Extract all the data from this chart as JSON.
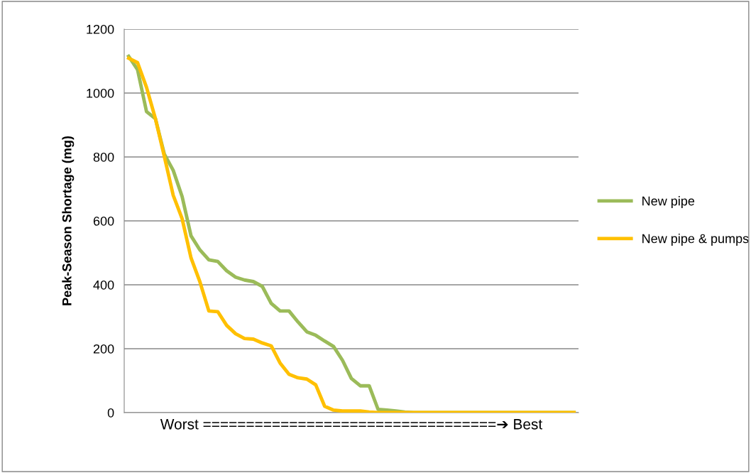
{
  "chart_data": {
    "type": "line",
    "ylabel": "Peak-Season Shortage (mg)",
    "xlabel": "Worst ==================================➔ Best",
    "categories": [
      null,
      null,
      null,
      null,
      null,
      null,
      null,
      null,
      null,
      null,
      null,
      null,
      null,
      null,
      null,
      null,
      null,
      null,
      null,
      null,
      null,
      null,
      null,
      null,
      null,
      null,
      null,
      null,
      null,
      null,
      null,
      null,
      null,
      null,
      null,
      null,
      null,
      null,
      null,
      null,
      null,
      null,
      null,
      null,
      null,
      null,
      null,
      null,
      null,
      null,
      null
    ],
    "series": [
      {
        "name": "New pipe",
        "color": "#9bbb59",
        "values": [
          1115,
          1073,
          942,
          920,
          809,
          758,
          676,
          553,
          509,
          478,
          473,
          444,
          424,
          415,
          410,
          395,
          342,
          318,
          318,
          284,
          253,
          242,
          224,
          207,
          164,
          107,
          84,
          84,
          10,
          8,
          5,
          2,
          0,
          0,
          0,
          0,
          0,
          0,
          0,
          0,
          0,
          0,
          0,
          0,
          0,
          0,
          0,
          0,
          0,
          0,
          0
        ]
      },
      {
        "name": "New pipe & pumps",
        "color": "#ffc000",
        "values": [
          1109,
          1095,
          1018,
          920,
          802,
          680,
          607,
          484,
          409,
          318,
          316,
          273,
          247,
          232,
          230,
          218,
          209,
          155,
          120,
          109,
          105,
          87,
          20,
          8,
          5,
          5,
          5,
          2,
          0,
          0,
          0,
          0,
          0,
          0,
          0,
          0,
          0,
          0,
          0,
          0,
          0,
          0,
          0,
          0,
          0,
          0,
          0,
          0,
          0,
          0,
          0
        ]
      }
    ],
    "ylim": [
      0,
      1200
    ],
    "yticks": [
      0,
      200,
      400,
      600,
      800,
      1000,
      1200
    ],
    "grid": "y",
    "legend": "right",
    "tick_labels": "y",
    "marker": "none",
    "line_style": "solid"
  }
}
